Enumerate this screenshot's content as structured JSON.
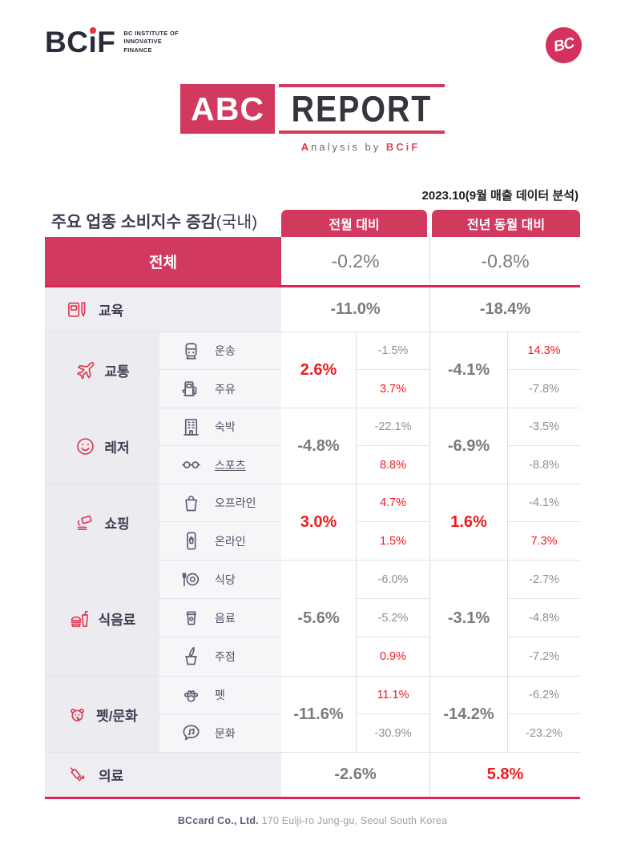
{
  "brand": {
    "logo_bc": "BC",
    "logo_i": "i",
    "logo_f": "F",
    "logo_sub_1": "BC INSTITUTE OF",
    "logo_sub_2": "INNOVATIVE",
    "logo_sub_3": "FINANCE",
    "badge_text": "BC"
  },
  "banner": {
    "abc": "ABC",
    "report": "REPORT",
    "tagline_a": "A",
    "tagline_rest": "nalysis by ",
    "tagline_brand": "BCiF"
  },
  "meta": {
    "date_note": "2023.10(9월 매출 데이터 분석)"
  },
  "table": {
    "title_main": "주요 업종 소비지수 증감",
    "title_suffix": "(국내)",
    "col_headers": [
      "전월 대비",
      "전년 동월 대비"
    ],
    "rows": [
      {
        "type": "total",
        "label": "전체",
        "pm": {
          "text": "-0.2%",
          "tone": "gray"
        },
        "yoy": {
          "text": "-0.8%",
          "tone": "gray"
        },
        "accent_bottom": true
      },
      {
        "type": "simple",
        "label": "교육",
        "icon": "book-pencil",
        "pm": {
          "text": "-11.0%",
          "tone": "gray"
        },
        "yoy": {
          "text": "-18.4%",
          "tone": "gray"
        }
      },
      {
        "type": "group",
        "label": "교통",
        "icon": "airplane",
        "pm": {
          "text": "2.6%",
          "tone": "red"
        },
        "yoy": {
          "text": "-4.1%",
          "tone": "gray"
        },
        "subs": [
          {
            "label": "운송",
            "icon": "train",
            "pm": {
              "text": "-1.5%",
              "tone": "gray"
            },
            "yoy": {
              "text": "14.3%",
              "tone": "red"
            }
          },
          {
            "label": "주유",
            "icon": "fuel-pump",
            "pm": {
              "text": "3.7%",
              "tone": "red"
            },
            "yoy": {
              "text": "-7.8%",
              "tone": "gray"
            }
          }
        ]
      },
      {
        "type": "group",
        "label": "레저",
        "icon": "smiley",
        "pm": {
          "text": "-4.8%",
          "tone": "gray"
        },
        "yoy": {
          "text": "-6.9%",
          "tone": "gray"
        },
        "subs": [
          {
            "label": "숙박",
            "icon": "hotel-building",
            "pm": {
              "text": "-22.1%",
              "tone": "gray"
            },
            "yoy": {
              "text": "-3.5%",
              "tone": "gray"
            }
          },
          {
            "label": "스포츠",
            "icon": "dumbbell",
            "underline": true,
            "pm": {
              "text": "8.8%",
              "tone": "red"
            },
            "yoy": {
              "text": "-8.8%",
              "tone": "gray"
            }
          }
        ]
      },
      {
        "type": "group",
        "label": "쇼핑",
        "icon": "card-hand",
        "pm": {
          "text": "3.0%",
          "tone": "red"
        },
        "yoy": {
          "text": "1.6%",
          "tone": "red"
        },
        "subs": [
          {
            "label": "오프라인",
            "icon": "shopping-bag",
            "pm": {
              "text": "4.7%",
              "tone": "red"
            },
            "yoy": {
              "text": "-4.1%",
              "tone": "gray"
            }
          },
          {
            "label": "온라인",
            "icon": "mobile-shopping",
            "pm": {
              "text": "1.5%",
              "tone": "red"
            },
            "yoy": {
              "text": "7.3%",
              "tone": "red"
            }
          }
        ]
      },
      {
        "type": "group",
        "label": "식음료",
        "icon": "burger-drink",
        "pm": {
          "text": "-5.6%",
          "tone": "gray"
        },
        "yoy": {
          "text": "-3.1%",
          "tone": "gray"
        },
        "subs": [
          {
            "label": "식당",
            "icon": "plate-cutlery",
            "pm": {
              "text": "-6.0%",
              "tone": "gray"
            },
            "yoy": {
              "text": "-2.7%",
              "tone": "gray"
            }
          },
          {
            "label": "음료",
            "icon": "beverage-cup",
            "pm": {
              "text": "-5.2%",
              "tone": "gray"
            },
            "yoy": {
              "text": "-4.8%",
              "tone": "gray"
            }
          },
          {
            "label": "주점",
            "icon": "wine-bucket",
            "pm": {
              "text": "0.9%",
              "tone": "red"
            },
            "yoy": {
              "text": "-7.2%",
              "tone": "gray"
            }
          }
        ]
      },
      {
        "type": "group",
        "label": "펫/문화",
        "icon": "dog-face",
        "pm": {
          "text": "-11.6%",
          "tone": "gray"
        },
        "yoy": {
          "text": "-14.2%",
          "tone": "gray"
        },
        "subs": [
          {
            "label": "펫",
            "icon": "paw",
            "pm": {
              "text": "11.1%",
              "tone": "red"
            },
            "yoy": {
              "text": "-6.2%",
              "tone": "gray"
            }
          },
          {
            "label": "문화",
            "icon": "music-bubble",
            "pm": {
              "text": "-30.9%",
              "tone": "gray"
            },
            "yoy": {
              "text": "-23.2%",
              "tone": "gray"
            }
          }
        ]
      },
      {
        "type": "simple",
        "label": "의료",
        "icon": "syringe",
        "accent_bottom": true,
        "pm": {
          "text": "-2.6%",
          "tone": "gray"
        },
        "yoy": {
          "text": "5.8%",
          "tone": "red"
        }
      }
    ]
  },
  "footer": {
    "company": "BCcard Co., Ltd.",
    "address": "170 Eulji-ro Jung-gu, Seoul South Korea"
  },
  "colors": {
    "crimson": "#d2395e",
    "accent_line": "#e02355",
    "bright_red": "#ee1b1e",
    "gray_value": "#7b7b7b",
    "category_bg": "#ebebf0",
    "subcategory_bg": "#f6f6f9"
  }
}
